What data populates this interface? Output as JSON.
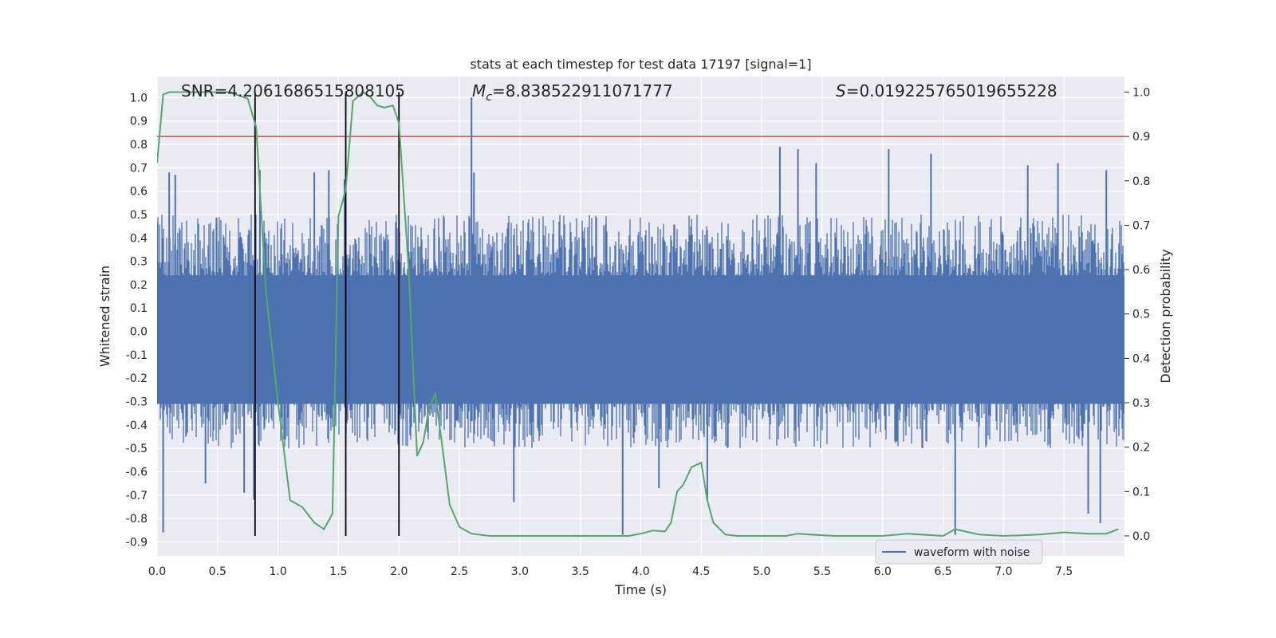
{
  "chart_data": {
    "type": "line",
    "title": "stats at each timestep for test data 17197 [signal=1]",
    "xlabel": "Time (s)",
    "ylabel": "Whitened strain",
    "y2label": "Detection probability",
    "xlim": [
      0.0,
      8.0
    ],
    "ylim": [
      -0.96,
      1.09
    ],
    "y2lim": [
      -0.045,
      1.035
    ],
    "x_ticks": [
      0.0,
      0.5,
      1.0,
      1.5,
      2.0,
      2.5,
      3.0,
      3.5,
      4.0,
      4.5,
      5.0,
      5.5,
      6.0,
      6.5,
      7.0,
      7.5
    ],
    "x_tick_labels": [
      "0.0",
      "0.5",
      "1.0",
      "1.5",
      "2.0",
      "2.5",
      "3.0",
      "3.5",
      "4.0",
      "4.5",
      "5.0",
      "5.5",
      "6.0",
      "6.5",
      "7.0",
      "7.5"
    ],
    "y_ticks": [
      1.0,
      0.9,
      0.8,
      0.7,
      0.6,
      0.5,
      0.4,
      0.3,
      0.2,
      0.1,
      0.0,
      -0.1,
      -0.2,
      -0.3,
      -0.4,
      -0.5,
      -0.6,
      -0.7,
      -0.8,
      -0.9
    ],
    "y_tick_labels": [
      "1.0",
      "0.9",
      "0.8",
      "0.7",
      "0.6",
      "0.5",
      "0.4",
      "0.3",
      "0.2",
      "0.1",
      "0.0",
      "-0.1",
      "-0.2",
      "-0.3",
      "-0.4",
      "-0.5",
      "-0.6",
      "-0.7",
      "-0.8",
      "-0.9"
    ],
    "y2_ticks": [
      1.0,
      0.9,
      0.8,
      0.7,
      0.6,
      0.5,
      0.4,
      0.3,
      0.2,
      0.1,
      0.0
    ],
    "y2_tick_labels": [
      "1.0",
      "0.9",
      "0.8",
      "0.7",
      "0.6",
      "0.5",
      "0.4",
      "0.3",
      "0.2",
      "0.1",
      "0.0"
    ],
    "annotations": {
      "snr": "SNR=4.2061686515808105",
      "mc_symbol": "M",
      "mc_sub": "c",
      "mc_value": "=8.838522911071777",
      "s_symbol": "S",
      "s_value": "=0.019225765019655228"
    },
    "threshold": 0.9,
    "vertical_lines_x": [
      0.81,
      1.56,
      2.0
    ],
    "vertical_lines_range": [
      0.0,
      1.0
    ],
    "waveform": {
      "name": "waveform with noise",
      "color": "#4c72b0",
      "duration": 8.0,
      "typical_envelope": [
        -0.5,
        0.5
      ],
      "peaks": [
        {
          "x": 0.05,
          "y": -0.86
        },
        {
          "x": 0.1,
          "y": 0.68
        },
        {
          "x": 0.15,
          "y": 0.67
        },
        {
          "x": 0.4,
          "y": -0.65
        },
        {
          "x": 0.72,
          "y": -0.69
        },
        {
          "x": 0.8,
          "y": -0.72
        },
        {
          "x": 0.85,
          "y": 0.69
        },
        {
          "x": 1.3,
          "y": 0.68
        },
        {
          "x": 1.42,
          "y": 0.69
        },
        {
          "x": 1.55,
          "y": 0.65
        },
        {
          "x": 2.6,
          "y": 1.0
        },
        {
          "x": 2.62,
          "y": 0.68
        },
        {
          "x": 2.95,
          "y": -0.73
        },
        {
          "x": 3.85,
          "y": -0.87
        },
        {
          "x": 4.15,
          "y": -0.67
        },
        {
          "x": 4.55,
          "y": -0.72
        },
        {
          "x": 5.15,
          "y": 0.79
        },
        {
          "x": 5.3,
          "y": 0.78
        },
        {
          "x": 5.45,
          "y": 0.72
        },
        {
          "x": 6.05,
          "y": 0.78
        },
        {
          "x": 6.4,
          "y": 0.76
        },
        {
          "x": 6.6,
          "y": -0.87
        },
        {
          "x": 7.2,
          "y": 0.71
        },
        {
          "x": 7.45,
          "y": 0.72
        },
        {
          "x": 7.7,
          "y": -0.78
        },
        {
          "x": 7.8,
          "y": -0.82
        },
        {
          "x": 7.85,
          "y": 0.69
        }
      ]
    },
    "detection_probability": {
      "color": "#55a868",
      "x": [
        0.0,
        0.05,
        0.1,
        0.2,
        0.3,
        0.4,
        0.5,
        0.6,
        0.7,
        0.75,
        0.82,
        0.9,
        1.0,
        1.1,
        1.2,
        1.3,
        1.38,
        1.45,
        1.5,
        1.56,
        1.62,
        1.7,
        1.76,
        1.82,
        1.88,
        1.95,
        2.0,
        2.08,
        2.15,
        2.2,
        2.25,
        2.3,
        2.35,
        2.42,
        2.5,
        2.6,
        2.75,
        2.9,
        3.1,
        3.3,
        3.5,
        3.7,
        3.9,
        4.0,
        4.1,
        4.2,
        4.25,
        4.3,
        4.35,
        4.42,
        4.5,
        4.55,
        4.6,
        4.7,
        4.8,
        4.9,
        5.0,
        5.2,
        5.3,
        5.4,
        5.6,
        5.8,
        6.0,
        6.2,
        6.5,
        6.6,
        6.8,
        7.0,
        7.3,
        7.5,
        7.7,
        7.85,
        7.95
      ],
      "y": [
        0.84,
        0.995,
        1.0,
        1.0,
        1.0,
        1.0,
        1.0,
        1.0,
        0.99,
        0.985,
        0.92,
        0.55,
        0.3,
        0.08,
        0.065,
        0.03,
        0.015,
        0.05,
        0.72,
        0.78,
        0.98,
        1.0,
        0.99,
        0.97,
        0.965,
        0.97,
        0.93,
        0.6,
        0.18,
        0.21,
        0.29,
        0.32,
        0.22,
        0.07,
        0.02,
        0.005,
        0.0,
        0.0,
        0.0,
        0.0,
        0.0,
        0.0,
        0.0,
        0.005,
        0.012,
        0.01,
        0.03,
        0.1,
        0.115,
        0.155,
        0.165,
        0.08,
        0.03,
        0.003,
        0.0,
        0.0,
        0.0,
        0.0,
        0.005,
        0.003,
        0.0,
        0.0,
        0.0,
        0.005,
        0.0,
        0.015,
        0.003,
        0.0,
        0.003,
        0.008,
        0.005,
        0.005,
        0.015
      ]
    },
    "legend": {
      "placement": "lower-right",
      "entries": [
        "waveform with noise"
      ]
    },
    "grid": true,
    "colors": {
      "background": "#eaeaf2",
      "grid": "#ffffff",
      "threshold": "#c44e52",
      "vlines": "#000000"
    }
  }
}
